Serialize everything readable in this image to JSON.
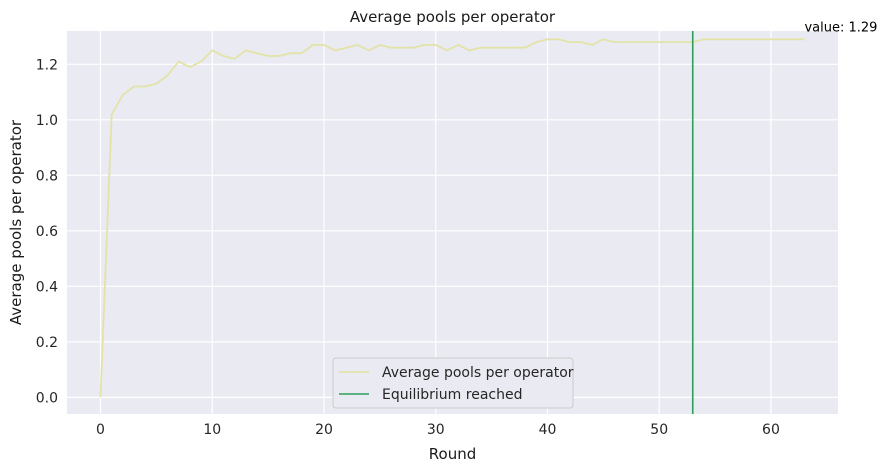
{
  "chart_data": {
    "type": "line",
    "title": "Average pools per operator",
    "xlabel": "Round",
    "ylabel": "Average pools per operator",
    "xlim": [
      -3,
      66
    ],
    "ylim": [
      -0.06,
      1.32
    ],
    "xticks": [
      0,
      10,
      20,
      30,
      40,
      50,
      60
    ],
    "yticks": [
      0.0,
      0.2,
      0.4,
      0.6,
      0.8,
      1.0,
      1.2
    ],
    "xtick_labels": [
      "0",
      "10",
      "20",
      "30",
      "40",
      "50",
      "60"
    ],
    "ytick_labels": [
      "0.0",
      "0.2",
      "0.4",
      "0.6",
      "0.8",
      "1.0",
      "1.2"
    ],
    "grid": true,
    "legend_position": "lower-center",
    "series": [
      {
        "name": "Average pools per operator",
        "color": "#e3e3a8",
        "x": [
          0,
          1,
          2,
          3,
          4,
          5,
          6,
          7,
          8,
          9,
          10,
          11,
          12,
          13,
          14,
          15,
          16,
          17,
          18,
          19,
          20,
          21,
          22,
          23,
          24,
          25,
          26,
          27,
          28,
          29,
          30,
          31,
          32,
          33,
          34,
          35,
          36,
          37,
          38,
          39,
          40,
          41,
          42,
          43,
          44,
          45,
          46,
          47,
          48,
          49,
          50,
          51,
          52,
          53,
          54,
          55,
          56,
          57,
          58,
          59,
          60,
          61,
          62,
          63
        ],
        "y": [
          0.0,
          1.02,
          1.09,
          1.12,
          1.12,
          1.13,
          1.16,
          1.21,
          1.19,
          1.21,
          1.25,
          1.23,
          1.22,
          1.25,
          1.24,
          1.23,
          1.23,
          1.24,
          1.24,
          1.27,
          1.27,
          1.25,
          1.26,
          1.27,
          1.25,
          1.27,
          1.26,
          1.26,
          1.26,
          1.27,
          1.27,
          1.25,
          1.27,
          1.25,
          1.26,
          1.26,
          1.26,
          1.26,
          1.26,
          1.28,
          1.29,
          1.29,
          1.28,
          1.28,
          1.27,
          1.29,
          1.28,
          1.28,
          1.28,
          1.28,
          1.28,
          1.28,
          1.28,
          1.28,
          1.29,
          1.29,
          1.29,
          1.29,
          1.29,
          1.29,
          1.29,
          1.29,
          1.29,
          1.29
        ]
      }
    ],
    "vline": {
      "name": "Equilibrium reached",
      "x": 53,
      "color": "#2ca05a"
    },
    "annotation": {
      "text": "value: 1.29",
      "x": 63,
      "y": 1.29
    }
  }
}
